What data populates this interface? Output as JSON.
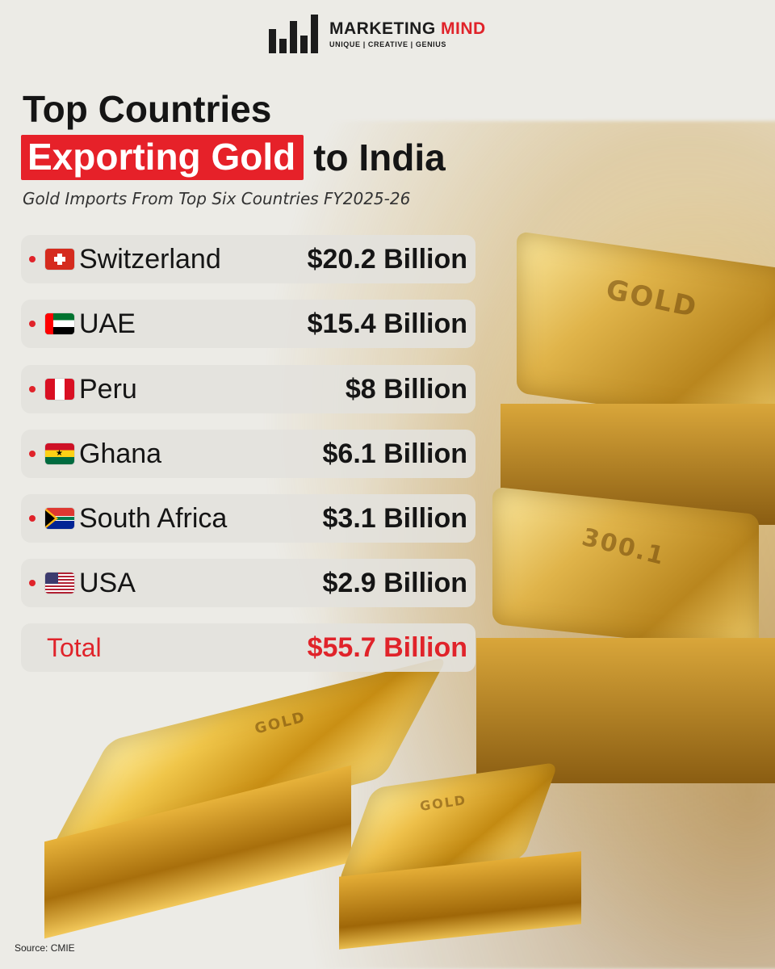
{
  "brand": {
    "name_part1": "MARKETING ",
    "name_part2": "MIND",
    "tagline": "UNIQUE | CREATIVE | GENIUS",
    "accent_color": "#e0232a"
  },
  "title": {
    "line1": "Top Countries",
    "highlight": "Exporting Gold",
    "line2_rest": "to India",
    "subtitle": "Gold Imports From Top Six Countries FY2025-26"
  },
  "rows": [
    {
      "country": "Switzerland",
      "value": "$20.2 Billion",
      "flag_icon": "switzerland-flag-icon"
    },
    {
      "country": "UAE",
      "value": "$15.4 Billion",
      "flag_icon": "uae-flag-icon"
    },
    {
      "country": "Peru",
      "value": "$8 Billion",
      "flag_icon": "peru-flag-icon"
    },
    {
      "country": "Ghana",
      "value": "$6.1 Billion",
      "flag_icon": "ghana-flag-icon"
    },
    {
      "country": "South Africa",
      "value": "$3.1 Billion",
      "flag_icon": "south-africa-flag-icon"
    },
    {
      "country": "USA",
      "value": "$2.9 Billion",
      "flag_icon": "usa-flag-icon"
    }
  ],
  "total": {
    "label": "Total",
    "value": "$55.7 Billion"
  },
  "source": "Source: CMIE"
}
